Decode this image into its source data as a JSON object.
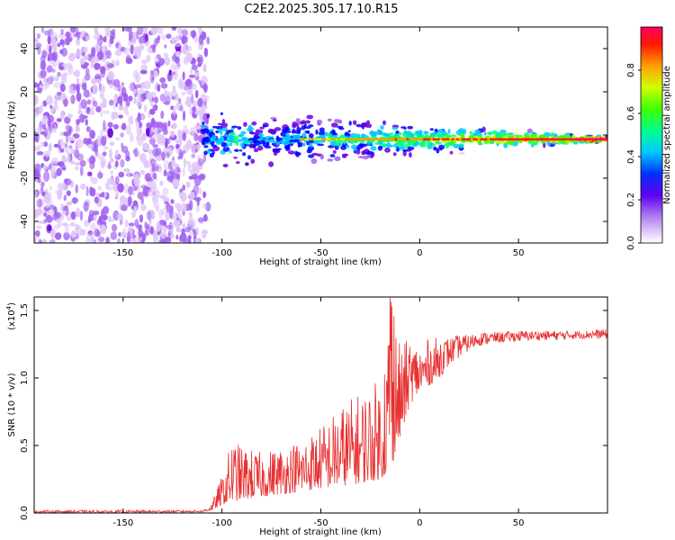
{
  "title": "C2E2.2025.305.17.10.R15",
  "chart_data": [
    {
      "type": "heatmap",
      "name": "spectrogram",
      "xlabel": "Height of straight line (km)",
      "ylabel": "Frequency (Hz)",
      "xlim": [
        -195,
        95
      ],
      "ylim": [
        -50,
        50
      ],
      "xticks": [
        -150,
        -100,
        -50,
        0,
        50
      ],
      "yticks": [
        -40,
        -20,
        0,
        20,
        40
      ],
      "xtick_labels": [
        "-150",
        "-100",
        "-50",
        "0",
        "50"
      ],
      "ytick_labels": [
        "-40",
        "-20",
        "0",
        "20",
        "40"
      ],
      "noise_region_x": [
        -195,
        -110
      ],
      "signal_region_x": [
        -110,
        95
      ],
      "signal_center_frequency_hz": -2,
      "colorbar": {
        "label": "Normalized spectral amplitude",
        "range": [
          0.0,
          1.0
        ],
        "ticks": [
          0.0,
          0.2,
          0.4,
          0.6,
          0.8
        ],
        "tick_labels": [
          "0.0",
          "0.2",
          "0.4",
          "0.6",
          "0.8"
        ],
        "colormap": [
          "#ffffff",
          "#e0c8f8",
          "#a060f0",
          "#6a00e0",
          "#0000ff",
          "#00c8ff",
          "#00ff80",
          "#40ff00",
          "#c8ff00",
          "#ffa000",
          "#ff2000",
          "#ff0060"
        ]
      }
    },
    {
      "type": "line",
      "name": "snr",
      "xlabel": "Height of straight line (km)",
      "ylabel": "SNR (10 * v/v)",
      "exponent_label": "(x10",
      "exponent_power": "4",
      "exponent_close": ")",
      "xlim": [
        -195,
        95
      ],
      "ylim": [
        0,
        1.6
      ],
      "xticks": [
        -150,
        -100,
        -50,
        0,
        50
      ],
      "yticks": [
        0.0,
        0.5,
        1.0,
        1.5
      ],
      "xtick_labels": [
        "-150",
        "-100",
        "-50",
        "0",
        "50"
      ],
      "ytick_labels": [
        "0.0",
        "0.5",
        "1.0",
        "1.5"
      ],
      "color": "#e83030",
      "envelope": {
        "x": [
          -195,
          -150,
          -110,
          -105,
          -100,
          -95,
          -90,
          -80,
          -70,
          -60,
          -50,
          -40,
          -30,
          -20,
          -15,
          -10,
          -5,
          0,
          5,
          10,
          15,
          20,
          25,
          30,
          40,
          50,
          60,
          70,
          80,
          90,
          95
        ],
        "base": [
          0.0,
          0.0,
          0.005,
          0.02,
          0.06,
          0.08,
          0.1,
          0.12,
          0.14,
          0.16,
          0.18,
          0.2,
          0.22,
          0.25,
          0.3,
          0.55,
          0.8,
          0.9,
          0.95,
          1.0,
          1.08,
          1.15,
          1.2,
          1.24,
          1.26,
          1.27,
          1.28,
          1.28,
          1.29,
          1.29,
          1.29
        ],
        "peak": [
          0.02,
          0.02,
          0.02,
          0.08,
          0.28,
          0.55,
          0.5,
          0.45,
          0.5,
          0.55,
          0.65,
          0.8,
          0.9,
          1.0,
          1.6,
          1.25,
          1.3,
          1.25,
          1.3,
          1.3,
          1.3,
          1.32,
          1.32,
          1.34,
          1.34,
          1.35,
          1.35,
          1.35,
          1.35,
          1.36,
          1.36
        ]
      }
    }
  ]
}
